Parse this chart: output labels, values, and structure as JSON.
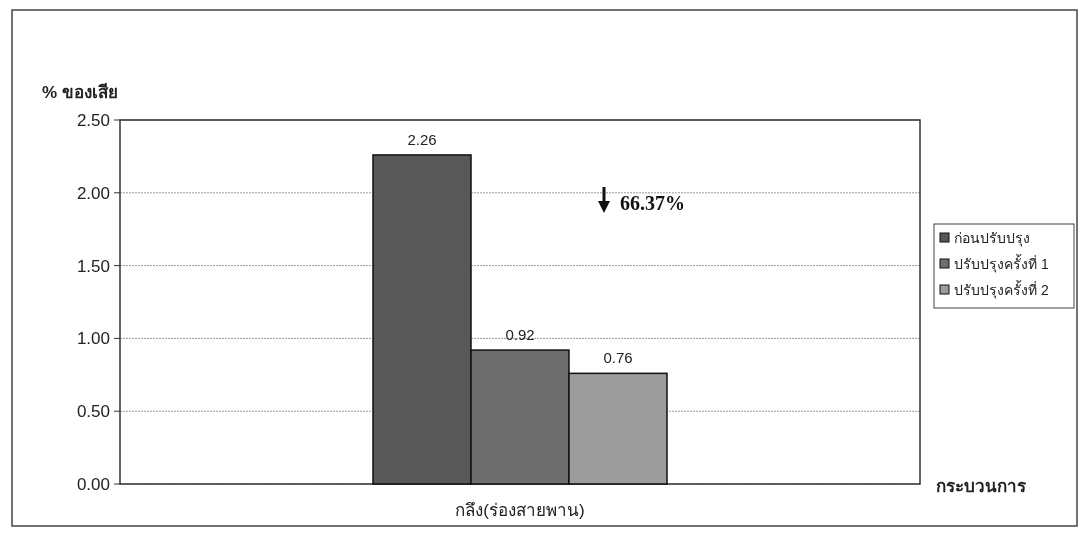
{
  "chart_data": {
    "type": "bar",
    "ylabel": "% ของเสีย",
    "xlabel": "กระบวนการ",
    "categories": [
      "กลึง(ร่องสายพาน)"
    ],
    "series": [
      {
        "name": "ก่อนปรับปรุง",
        "color": "#585858",
        "values": [
          2.26
        ]
      },
      {
        "name": "ปรับปรุงครั้งที่ 1",
        "color": "#6e6e6e",
        "values": [
          0.92
        ]
      },
      {
        "name": "ปรับปรุงครั้งที่ 2",
        "color": "#9c9c9c",
        "values": [
          0.76
        ]
      }
    ],
    "ylim": [
      0,
      2.5
    ],
    "yticks": [
      {
        "value": 0,
        "label": "0.00"
      },
      {
        "value": 0.5,
        "label": "0.50"
      },
      {
        "value": 1,
        "label": "1.00"
      },
      {
        "value": 1.5,
        "label": "1.50"
      },
      {
        "value": 2,
        "label": "2.00"
      },
      {
        "value": 2.5,
        "label": "2.50"
      }
    ],
    "grid": "y",
    "legend": "right",
    "data_labels": true,
    "annotations": [
      "66.37%"
    ]
  }
}
